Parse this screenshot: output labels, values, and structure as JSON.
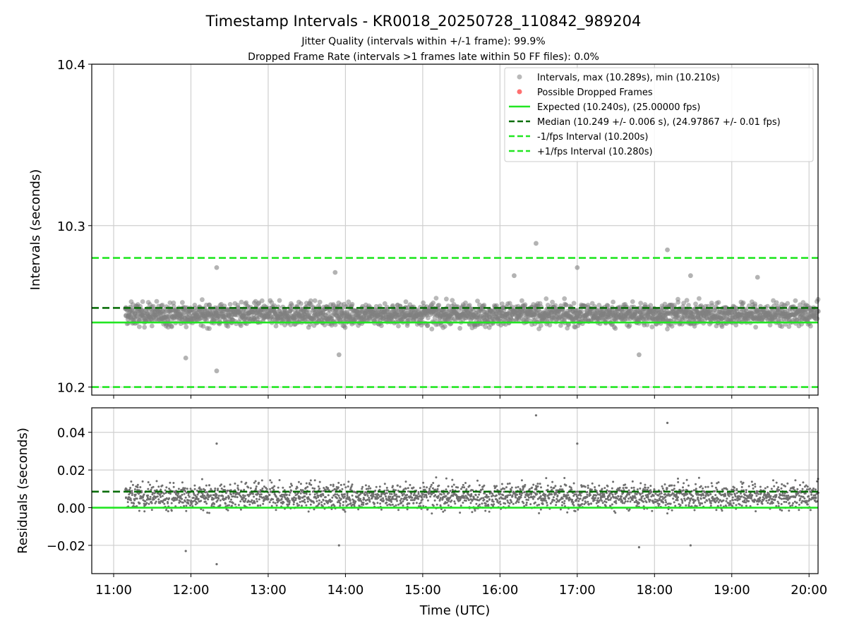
{
  "chart_data": [
    {
      "type": "scatter",
      "title": "Timestamp Intervals - KR0018_20250728_110842_989204",
      "subtitle_lines": [
        "Jitter Quality (intervals within +/-1 frame): 99.9%",
        "Dropped Frame Rate (intervals >1 frames late within 50 FF files): 0.0%"
      ],
      "ylabel": "Intervals (seconds)",
      "xlabel": "",
      "x_range_utc": [
        "10:43",
        "20:07"
      ],
      "ylim": [
        10.195,
        10.4
      ],
      "y_ticks": [
        "10.2",
        "10.3",
        "10.4"
      ],
      "grid": true,
      "legend_position": "top-right",
      "legend": [
        {
          "label": "Intervals, max (10.289s), min (10.210s)",
          "kind": "marker",
          "color": "#808080"
        },
        {
          "label": "Possible Dropped Frames",
          "kind": "marker",
          "color": "#ff6060"
        },
        {
          "label": "Expected (10.240s), (25.00000 fps)",
          "kind": "solid",
          "color": "#22e622"
        },
        {
          "label": "Median (10.249 +/- 0.006 s), (24.97867 +/- 0.01 fps)",
          "kind": "dashed",
          "color": "#0a6e0a"
        },
        {
          "label": "-1/fps Interval (10.200s)",
          "kind": "dashed",
          "color": "#22e622"
        },
        {
          "label": "+1/fps Interval (10.280s)",
          "kind": "dashed",
          "color": "#22e622"
        }
      ],
      "reference_lines": {
        "expected": 10.24,
        "median": 10.249,
        "minus_one_fps": 10.2,
        "plus_one_fps": 10.28
      },
      "series": [
        {
          "name": "Intervals, max (10.289s), min (10.210s)",
          "time_start_utc": "11:09",
          "time_end_utc": "20:07",
          "center": 10.245,
          "band_low": 10.235,
          "band_high": 10.255,
          "max": 10.289,
          "min": 10.21,
          "notable_points": [
            {
              "time": "12:20",
              "value": 10.21
            },
            {
              "time": "11:56",
              "value": 10.218
            },
            {
              "time": "16:28",
              "value": 10.289
            },
            {
              "time": "18:10",
              "value": 10.285
            },
            {
              "time": "12:20",
              "value": 10.274
            },
            {
              "time": "17:00",
              "value": 10.274
            },
            {
              "time": "13:52",
              "value": 10.271
            },
            {
              "time": "16:11",
              "value": 10.269
            },
            {
              "time": "18:28",
              "value": 10.269
            },
            {
              "time": "19:20",
              "value": 10.268
            },
            {
              "time": "13:55",
              "value": 10.22
            },
            {
              "time": "17:48",
              "value": 10.22
            }
          ]
        },
        {
          "name": "Possible Dropped Frames",
          "values": []
        }
      ]
    },
    {
      "type": "scatter",
      "ylabel": "Residuals (seconds)",
      "xlabel": "Time (UTC)",
      "x_range_utc": [
        "10:43",
        "20:07"
      ],
      "x_ticks": [
        "11:00",
        "12:00",
        "13:00",
        "14:00",
        "15:00",
        "16:00",
        "17:00",
        "18:00",
        "19:00",
        "20:00"
      ],
      "ylim": [
        -0.035,
        0.053
      ],
      "y_ticks": [
        "−0.02",
        "0.00",
        "0.02",
        "0.04"
      ],
      "grid": true,
      "reference_lines": {
        "zero": 0.0,
        "median": 0.0085
      },
      "series": [
        {
          "name": "residuals",
          "time_start_utc": "11:09",
          "time_end_utc": "20:07",
          "center": 0.006,
          "band_low": -0.004,
          "band_high": 0.016,
          "max": 0.049,
          "min": -0.03,
          "notable_points": [
            {
              "time": "16:28",
              "value": 0.049
            },
            {
              "time": "18:10",
              "value": 0.045
            },
            {
              "time": "12:20",
              "value": 0.034
            },
            {
              "time": "17:00",
              "value": 0.034
            },
            {
              "time": "12:20",
              "value": -0.03
            },
            {
              "time": "11:56",
              "value": -0.023
            },
            {
              "time": "13:55",
              "value": -0.02
            },
            {
              "time": "17:48",
              "value": -0.021
            },
            {
              "time": "18:28",
              "value": -0.02
            }
          ]
        }
      ]
    }
  ]
}
